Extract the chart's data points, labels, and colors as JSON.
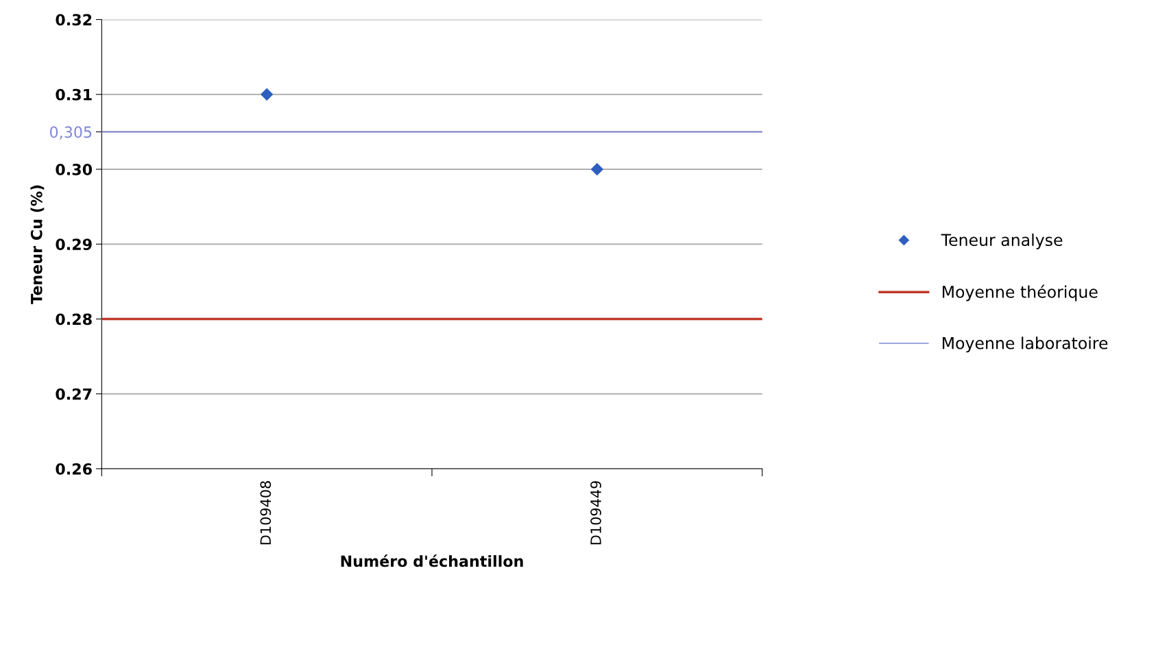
{
  "chart_data": {
    "type": "scatter",
    "xlabel": "Numéro d'échantillon",
    "ylabel": "Teneur Cu (%)",
    "categories": [
      "D109408",
      "D109449"
    ],
    "series": [
      {
        "name": "Teneur analyse",
        "color": "#2e5fbf",
        "values": [
          0.31,
          0.3
        ]
      }
    ],
    "marker": "diamond",
    "ref_lines": [
      {
        "axis": "y",
        "value": 0.28,
        "label": "Moyenne théorique",
        "color": "#c0392b"
      },
      {
        "axis": "y",
        "value": 0.305,
        "label": "Moyenne laboratoire",
        "color": "#7f86d8"
      }
    ],
    "ylim": [
      0.26,
      0.32
    ],
    "yticks": [
      {
        "value": 0.26,
        "label": "0.26"
      },
      {
        "value": 0.27,
        "label": "0.27"
      },
      {
        "value": 0.28,
        "label": "0.28"
      },
      {
        "value": 0.29,
        "label": "0.29"
      },
      {
        "value": 0.3,
        "label": "0.30"
      },
      {
        "value": 0.305,
        "label": "0,305"
      },
      {
        "value": 0.31,
        "label": "0.31"
      },
      {
        "value": 0.32,
        "label": "0.32"
      }
    ],
    "grid": "y",
    "legend": "right"
  }
}
